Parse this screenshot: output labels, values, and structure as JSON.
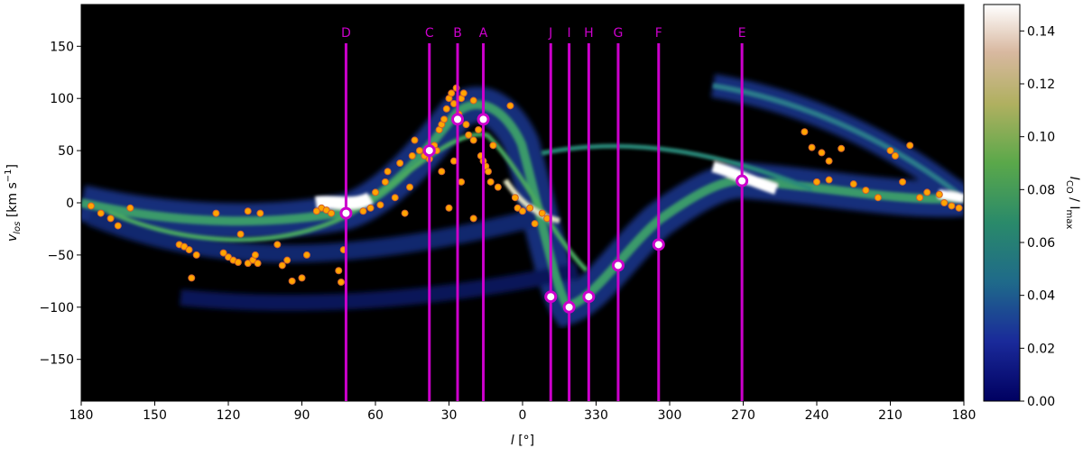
{
  "chart_data": {
    "type": "lv-diagram",
    "xlabel": [
      "l",
      " [°]"
    ],
    "ylabel": [
      "v",
      "los",
      " [km s",
      "−1",
      "]"
    ],
    "colorbar_label": [
      "I",
      "CO",
      " / I",
      "max"
    ],
    "xlim": [
      180,
      -180
    ],
    "ylim": [
      -190,
      190
    ],
    "xticks": [
      180,
      150,
      120,
      90,
      60,
      30,
      0,
      {
        "value": -30,
        "label": "330"
      },
      {
        "value": -60,
        "label": "300"
      },
      {
        "value": -90,
        "label": "270"
      },
      {
        "value": -120,
        "label": "240"
      },
      {
        "value": -150,
        "label": "210"
      },
      {
        "value": -180,
        "label": "180"
      }
    ],
    "yticks": [
      150,
      100,
      50,
      0,
      {
        "value": -50,
        "label": "−50"
      },
      {
        "value": -100,
        "label": "−100"
      },
      {
        "value": -150,
        "label": "−150"
      }
    ],
    "clim": [
      0,
      0.15
    ],
    "cticks": [
      {
        "value": 0,
        "label": "0.00"
      },
      {
        "value": 0.02,
        "label": "0.02"
      },
      {
        "value": 0.04,
        "label": "0.04"
      },
      {
        "value": 0.06,
        "label": "0.06"
      },
      {
        "value": 0.08,
        "label": "0.08"
      },
      {
        "value": 0.1,
        "label": "0.10"
      },
      {
        "value": 0.12,
        "label": "0.12"
      },
      {
        "value": 0.14,
        "label": "0.14"
      }
    ],
    "marker_color": "#cc00cc",
    "markers": [
      {
        "label": "D",
        "l": 72,
        "v": -10
      },
      {
        "label": "C",
        "l": 38,
        "v": 50
      },
      {
        "label": "B",
        "l": 26.5,
        "v": 80
      },
      {
        "label": "A",
        "l": 16,
        "v": 80
      },
      {
        "label": "J",
        "l": -11.5,
        "v": -90
      },
      {
        "label": "I",
        "l": -19,
        "v": -100
      },
      {
        "label": "H",
        "l": -27,
        "v": -90
      },
      {
        "label": "G",
        "l": -39,
        "v": -60
      },
      {
        "label": "F",
        "l": -55.5,
        "v": -40
      },
      {
        "label": "E",
        "l": -89.5,
        "v": 21
      }
    ],
    "points_color": "#ffa500",
    "points": {
      "l": [
        176,
        172,
        168,
        165,
        160,
        140,
        138,
        136,
        135,
        133,
        125,
        122,
        120,
        118,
        116,
        115,
        112,
        110,
        109,
        108,
        112,
        107,
        100,
        98,
        96,
        94,
        90,
        88,
        82,
        80,
        78,
        75,
        74,
        73,
        84,
        65,
        62,
        60,
        58,
        56,
        55,
        52,
        50,
        48,
        46,
        45,
        44,
        42,
        40,
        38,
        36,
        34,
        33,
        32,
        31,
        30,
        29,
        28,
        27,
        26,
        25,
        24,
        23,
        22,
        20,
        20,
        18,
        17,
        16,
        15,
        14,
        13,
        12,
        10,
        5,
        3,
        2,
        0,
        -3,
        -5,
        -8,
        -10,
        30,
        35,
        28,
        33,
        25,
        20,
        -115,
        -118,
        -122,
        -125,
        -130,
        -120,
        -125,
        -135,
        -140,
        -145,
        -155,
        -158,
        -162,
        -165,
        -170,
        -172,
        -175,
        -178,
        -150,
        -152
      ],
      "v": [
        -3,
        -10,
        -15,
        -22,
        -5,
        -40,
        -42,
        -45,
        -72,
        -50,
        -10,
        -48,
        -52,
        -55,
        -57,
        -30,
        -58,
        -55,
        -50,
        -58,
        -8,
        -10,
        -40,
        -60,
        -55,
        -75,
        -72,
        -50,
        -5,
        -7,
        -10,
        -65,
        -76,
        -45,
        -8,
        -8,
        -5,
        10,
        -2,
        20,
        30,
        5,
        38,
        -10,
        15,
        45,
        60,
        50,
        45,
        42,
        55,
        70,
        75,
        80,
        90,
        100,
        105,
        95,
        110,
        85,
        100,
        105,
        75,
        65,
        60,
        98,
        70,
        45,
        40,
        35,
        30,
        20,
        55,
        15,
        93,
        5,
        -5,
        -8,
        -5,
        -20,
        -10,
        -15,
        -5,
        50,
        40,
        30,
        20,
        -15,
        68,
        53,
        48,
        40,
        52,
        20,
        22,
        18,
        12,
        5,
        20,
        55,
        5,
        10,
        8,
        0,
        -3,
        -5,
        50,
        45
      ]
    }
  }
}
